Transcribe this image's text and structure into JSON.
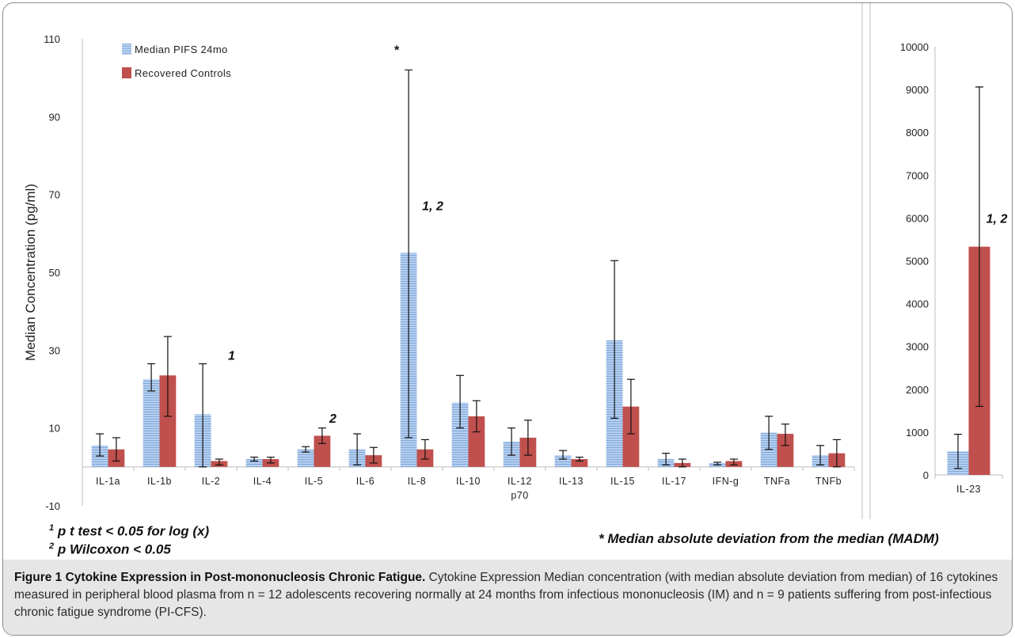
{
  "chart_data": [
    {
      "type": "bar",
      "ylabel": "Median Concentration (pg/ml)",
      "ylim": [
        -10,
        110
      ],
      "yticks": [
        -10,
        10,
        30,
        50,
        70,
        90,
        110
      ],
      "categories": [
        "IL-1a",
        "IL-1b",
        "IL-2",
        "IL-4",
        "IL-5",
        "IL-6",
        "IL-8",
        "IL-10",
        "IL-12 p70",
        "IL-13",
        "IL-15",
        "IL-17",
        "IFN-g",
        "TNFa",
        "TNFb"
      ],
      "category_lines": [
        [
          "IL-1a"
        ],
        [
          "IL-1b"
        ],
        [
          "IL-2"
        ],
        [
          "IL-4"
        ],
        [
          "IL-5"
        ],
        [
          "IL-6"
        ],
        [
          "IL-8"
        ],
        [
          "IL-10"
        ],
        [
          "IL-12",
          "p70"
        ],
        [
          "IL-13"
        ],
        [
          "IL-15"
        ],
        [
          "IL-17"
        ],
        [
          "IFN-g"
        ],
        [
          "TNFa"
        ],
        [
          "TNFb"
        ]
      ],
      "series": [
        {
          "name": "Median PIFS 24mo",
          "color": "#a9c6ea",
          "values": [
            5.5,
            22.5,
            13.5,
            2,
            4.5,
            4.5,
            55,
            16.5,
            6.5,
            3,
            32.5,
            2,
            1,
            8.8,
            3
          ],
          "err_low": [
            2.8,
            19.5,
            0,
            1.5,
            3.8,
            0.5,
            7.5,
            10,
            3,
            2,
            12.5,
            0.5,
            0.5,
            4.5,
            0.5
          ],
          "err_high": [
            8.5,
            26.5,
            26.5,
            2.5,
            5.2,
            8.5,
            102,
            23.5,
            10,
            4.2,
            53,
            3.5,
            1.2,
            13,
            5.5
          ]
        },
        {
          "name": "Recovered Controls",
          "color": "#c0504d",
          "values": [
            4.5,
            23.5,
            1.5,
            2,
            8,
            3,
            4.5,
            13,
            7.5,
            2,
            15.5,
            1,
            1.5,
            8.5,
            3.5
          ],
          "err_low": [
            1.5,
            13,
            0.5,
            1,
            6,
            1,
            2,
            9,
            3,
            1.5,
            8.5,
            0,
            0.5,
            5.5,
            0
          ],
          "err_high": [
            7.5,
            33.5,
            2,
            2.5,
            10,
            5,
            7,
            17,
            12,
            2.5,
            22.5,
            2,
            2,
            11,
            7
          ]
        }
      ],
      "annotations": [
        {
          "category": "IL-2",
          "text": "1"
        },
        {
          "category": "IL-5",
          "text": "2"
        },
        {
          "category": "IL-8",
          "text": "*"
        },
        {
          "category": "IL-8",
          "text": "1, 2"
        }
      ]
    },
    {
      "type": "bar",
      "ylim": [
        0,
        10000
      ],
      "yticks": [
        0,
        1000,
        2000,
        3000,
        4000,
        5000,
        6000,
        7000,
        8000,
        9000,
        10000
      ],
      "categories": [
        "IL-23"
      ],
      "series": [
        {
          "name": "Median PIFS 24mo",
          "color": "#a9c6ea",
          "values": [
            550
          ],
          "err_low": [
            150
          ],
          "err_high": [
            950
          ]
        },
        {
          "name": "Recovered Controls",
          "color": "#c0504d",
          "values": [
            5330
          ],
          "err_low": [
            1600
          ],
          "err_high": [
            9060
          ]
        }
      ],
      "annotations": [
        {
          "category": "IL-23",
          "text": "1, 2"
        }
      ]
    }
  ],
  "notes": {
    "note1_mark": "1",
    "note1_text": " p t test < 0.05 for log (x)",
    "note2_mark": "2",
    "note2_text": " p Wilcoxon < 0.05",
    "madm": "* Median absolute deviation from the median (MADM)"
  },
  "caption": {
    "label": "Figure 1 Cytokine Expression in Post-mononucleosis Chronic Fatigue.",
    "text": " Cytokine Expression Median concentration (with median absolute deviation from median) of 16 cytokines measured in peripheral blood plasma from n = 12 adolescents recovering normally at 24 months from infectious mononucleosis (IM) and n = 9 patients suffering from post-infectious chronic fatigue syndrome (PI-CFS)."
  }
}
